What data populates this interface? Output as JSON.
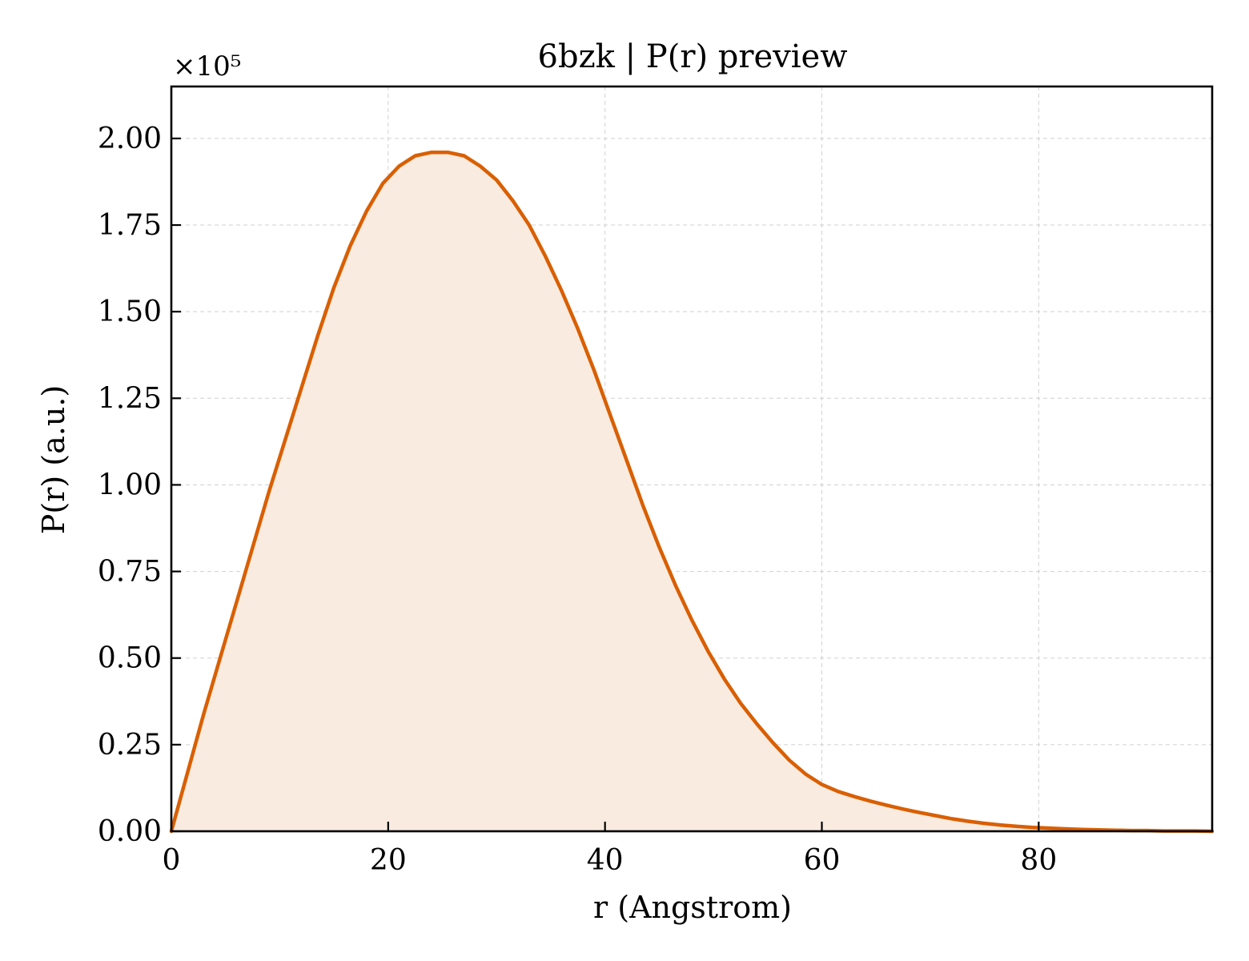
{
  "chart_data": {
    "type": "area",
    "title": "6bzk | P(r) preview",
    "xlabel": "r (Angstrom)",
    "ylabel": "P(r) (a.u.)",
    "y_scale_label": "×10⁵",
    "xlim": [
      0,
      96
    ],
    "ylim": [
      0,
      2.15
    ],
    "y_multiplier": 100000,
    "x_ticks": [
      0,
      20,
      40,
      60,
      80
    ],
    "x_tick_labels": [
      "0",
      "20",
      "40",
      "60",
      "80"
    ],
    "y_ticks": [
      0,
      0.25,
      0.5,
      0.75,
      1.0,
      1.25,
      1.5,
      1.75,
      2.0
    ],
    "y_tick_labels": [
      "0.00",
      "0.25",
      "0.50",
      "0.75",
      "1.00",
      "1.25",
      "1.50",
      "1.75",
      "2.00"
    ],
    "grid": true,
    "series": [
      {
        "color": "#d95f02",
        "fill_color": "#f9ebe0",
        "x": [
          0,
          1.5,
          3,
          4.5,
          6,
          7.5,
          9,
          10.5,
          12,
          13.5,
          15,
          16.5,
          18,
          19.5,
          21,
          22.5,
          24,
          25.5,
          27,
          28.5,
          30,
          31.5,
          33,
          34.5,
          36,
          37.5,
          39,
          40.5,
          42,
          43.5,
          45,
          46.5,
          48,
          49.5,
          51,
          52.5,
          54,
          55.5,
          57,
          58.5,
          60,
          61.5,
          63,
          64.5,
          66,
          67.5,
          69,
          70.5,
          72,
          73.5,
          75,
          76.5,
          78,
          79.5,
          81,
          82.5,
          84,
          85.5,
          87,
          88.5,
          90,
          91.5,
          93,
          94.5,
          96
        ],
        "y": [
          0,
          0.17,
          0.34,
          0.5,
          0.66,
          0.82,
          0.98,
          1.13,
          1.28,
          1.43,
          1.57,
          1.69,
          1.79,
          1.87,
          1.92,
          1.95,
          1.96,
          1.96,
          1.95,
          1.92,
          1.88,
          1.82,
          1.75,
          1.66,
          1.56,
          1.45,
          1.33,
          1.2,
          1.07,
          0.94,
          0.82,
          0.71,
          0.61,
          0.52,
          0.44,
          0.37,
          0.31,
          0.255,
          0.205,
          0.165,
          0.135,
          0.115,
          0.1,
          0.087,
          0.075,
          0.064,
          0.054,
          0.045,
          0.036,
          0.029,
          0.023,
          0.018,
          0.014,
          0.011,
          0.009,
          0.007,
          0.005,
          0.004,
          0.003,
          0.002,
          0.002,
          0.001,
          0.001,
          0.001,
          0.0
        ]
      }
    ]
  }
}
